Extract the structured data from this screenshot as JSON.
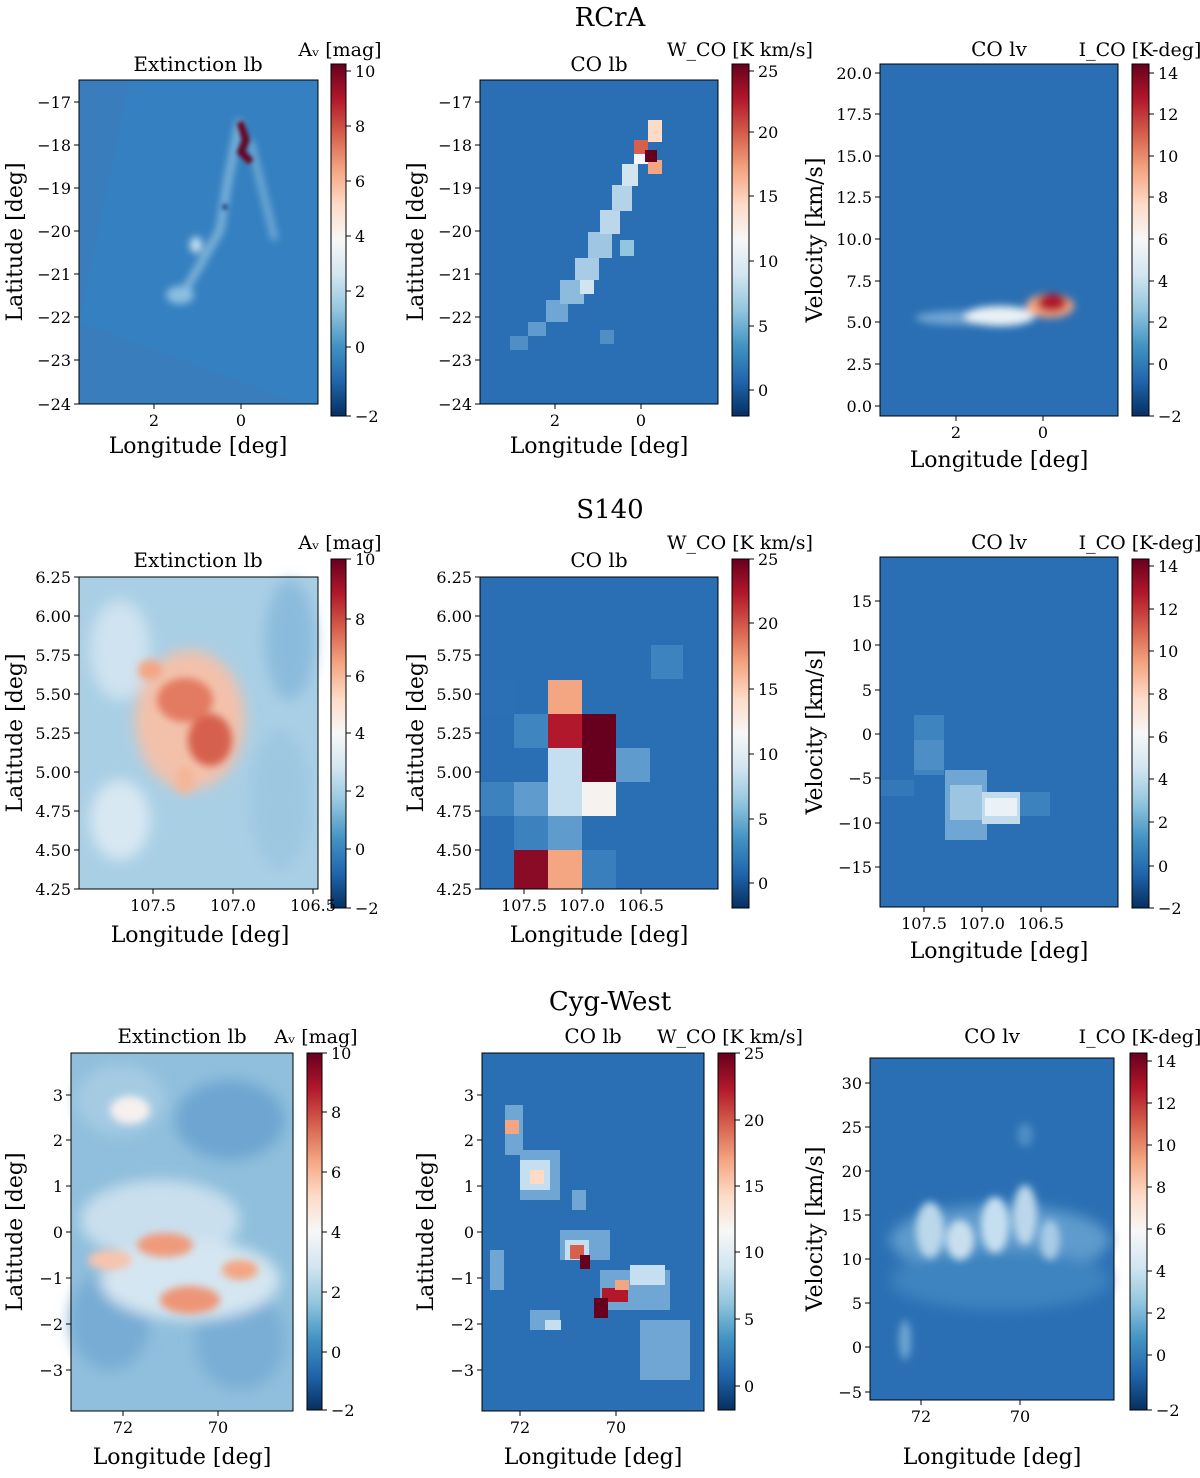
{
  "colors": {
    "cmap": [
      "#053061",
      "#2166ac",
      "#4393c3",
      "#92c5de",
      "#d1e5f0",
      "#f7f7f7",
      "#fddbc7",
      "#f4a582",
      "#d6604d",
      "#b2182b",
      "#67001f"
    ],
    "frame": "#000000"
  },
  "rows": [
    {
      "title": "RCrA",
      "panels": [
        {
          "title": "Extinction lb",
          "cbar_label": "Aᵥ [mag]",
          "xlabel": "Longitude [deg]",
          "ylabel": "Latitude [deg]",
          "xticks": [
            "2",
            "0"
          ],
          "yticks": [
            "−17",
            "−18",
            "−19",
            "−20",
            "−21",
            "−22",
            "−23",
            "−24"
          ],
          "cbar_ticks": [
            "10",
            "8",
            "6",
            "4",
            "2",
            "0",
            "−2"
          ]
        },
        {
          "title": "CO lb",
          "cbar_label": "W_CO [K km/s]",
          "xlabel": "Longitude [deg]",
          "ylabel": "Latitude [deg]",
          "xticks": [
            "2",
            "0"
          ],
          "yticks": [
            "−17",
            "−18",
            "−19",
            "−20",
            "−21",
            "−22",
            "−23",
            "−24"
          ],
          "cbar_ticks": [
            "25",
            "20",
            "15",
            "10",
            "5",
            "0"
          ]
        },
        {
          "title": "CO lv",
          "cbar_label": "I_CO [K-deg]",
          "xlabel": "Longitude [deg]",
          "ylabel": "Velocity [km/s]",
          "xticks": [
            "2",
            "0"
          ],
          "yticks": [
            "20.0",
            "17.5",
            "15.0",
            "12.5",
            "10.0",
            "7.5",
            "5.0",
            "2.5",
            "0.0"
          ],
          "cbar_ticks": [
            "14",
            "12",
            "10",
            "8",
            "6",
            "4",
            "2",
            "0",
            "−2"
          ]
        }
      ]
    },
    {
      "title": "S140",
      "panels": [
        {
          "title": "Extinction lb",
          "cbar_label": "Aᵥ [mag]",
          "xlabel": "Longitude [deg]",
          "ylabel": "Latitude [deg]",
          "xticks": [
            "107.5",
            "107.0",
            "106.5"
          ],
          "yticks": [
            "6.25",
            "6.00",
            "5.75",
            "5.50",
            "5.25",
            "5.00",
            "4.75",
            "4.50",
            "4.25"
          ],
          "cbar_ticks": [
            "10",
            "8",
            "6",
            "4",
            "2",
            "0",
            "−2"
          ]
        },
        {
          "title": "CO lb",
          "cbar_label": "W_CO [K km/s]",
          "xlabel": "Longitude [deg]",
          "ylabel": "Latitude [deg]",
          "xticks": [
            "107.5",
            "107.0",
            "106.5"
          ],
          "yticks": [
            "6.25",
            "6.00",
            "5.75",
            "5.50",
            "5.25",
            "5.00",
            "4.75",
            "4.50",
            "4.25"
          ],
          "cbar_ticks": [
            "25",
            "20",
            "15",
            "10",
            "5",
            "0"
          ]
        },
        {
          "title": "CO lv",
          "cbar_label": "I_CO [K-deg]",
          "xlabel": "Longitude [deg]",
          "ylabel": "Velocity [km/s]",
          "xticks": [
            "107.5",
            "107.0",
            "106.5"
          ],
          "yticks": [
            "15",
            "10",
            "5",
            "0",
            "−5",
            "−10",
            "−15"
          ],
          "cbar_ticks": [
            "14",
            "12",
            "10",
            "8",
            "6",
            "4",
            "2",
            "0",
            "−2"
          ]
        }
      ]
    },
    {
      "title": "Cyg-West",
      "panels": [
        {
          "title": "Extinction lb",
          "cbar_label": "Aᵥ [mag]",
          "xlabel": "Longitude [deg]",
          "ylabel": "Latitude [deg]",
          "xticks": [
            "72",
            "70"
          ],
          "yticks": [
            "3",
            "2",
            "1",
            "0",
            "−1",
            "−2",
            "−3"
          ],
          "cbar_ticks": [
            "10",
            "8",
            "6",
            "4",
            "2",
            "0",
            "−2"
          ]
        },
        {
          "title": "CO lb",
          "cbar_label": "W_CO [K km/s]",
          "xlabel": "Longitude [deg]",
          "ylabel": "Latitude [deg]",
          "xticks": [
            "72",
            "70"
          ],
          "yticks": [
            "3",
            "2",
            "1",
            "0",
            "−1",
            "−2",
            "−3"
          ],
          "cbar_ticks": [
            "25",
            "20",
            "15",
            "10",
            "5",
            "0"
          ]
        },
        {
          "title": "CO lv",
          "cbar_label": "I_CO [K-deg]",
          "xlabel": "Longitude [deg]",
          "ylabel": "Velocity [km/s]",
          "xticks": [
            "72",
            "70"
          ],
          "yticks": [
            "30",
            "25",
            "20",
            "15",
            "10",
            "5",
            "0",
            "−5"
          ],
          "cbar_ticks": [
            "14",
            "12",
            "10",
            "8",
            "6",
            "4",
            "2",
            "0",
            "−2"
          ]
        }
      ]
    }
  ],
  "chart_data": [
    {
      "type": "heatmap",
      "title": "RCrA — Extinction lb",
      "xlabel": "Longitude [deg]",
      "ylabel": "Latitude [deg]",
      "xlim": [
        3.8,
        -1.8
      ],
      "ylim": [
        -24,
        -16.4
      ],
      "colorbar": {
        "label": "Aᵥ [mag]",
        "range": [
          -2,
          10
        ]
      },
      "features": [
        {
          "l": 0.0,
          "b": -18.0,
          "value": 10
        },
        {
          "l": 0.55,
          "b": -19.6,
          "value": 4
        },
        {
          "l": 1.3,
          "b": -20.5,
          "value": 3
        },
        {
          "l": 1.4,
          "b": -21.5,
          "value": 2.5
        }
      ]
    },
    {
      "type": "heatmap",
      "title": "RCrA — CO lb",
      "xlabel": "Longitude [deg]",
      "ylabel": "Latitude [deg]",
      "xlim": [
        3.8,
        -1.8
      ],
      "ylim": [
        -24,
        -16.4
      ],
      "colorbar": {
        "label": "W_CO [K km/s]",
        "range": [
          -2,
          25
        ]
      },
      "features": [
        {
          "l": -0.2,
          "b": -18.2,
          "value": 25
        },
        {
          "l": -0.4,
          "b": -17.9,
          "value": 14
        },
        {
          "l": 0.5,
          "b": -19.0,
          "value": 8
        },
        {
          "l": 1.2,
          "b": -20.5,
          "value": 6
        },
        {
          "l": 2.2,
          "b": -21.8,
          "value": 4
        }
      ]
    },
    {
      "type": "heatmap",
      "title": "RCrA — CO lv",
      "xlabel": "Longitude [deg]",
      "ylabel": "Velocity [km/s]",
      "xlim": [
        3.8,
        -1.8
      ],
      "ylim": [
        -0.5,
        20.5
      ],
      "colorbar": {
        "label": "I_CO [K-deg]",
        "range": [
          -2,
          15
        ]
      },
      "features": [
        {
          "l": -0.2,
          "v": 5.8,
          "value": 15
        },
        {
          "l": 0.6,
          "v": 5.4,
          "value": 7
        },
        {
          "l": 2.2,
          "v": 5.2,
          "value": 4
        }
      ]
    },
    {
      "type": "heatmap",
      "title": "S140 — Extinction lb",
      "xlabel": "Longitude [deg]",
      "ylabel": "Latitude [deg]",
      "xlim": [
        107.75,
        106.25
      ],
      "ylim": [
        4.25,
        6.25
      ],
      "colorbar": {
        "label": "Aᵥ [mag]",
        "range": [
          -2,
          10
        ]
      },
      "features": [
        {
          "l": 106.95,
          "b": 5.15,
          "value": 8
        },
        {
          "l": 107.1,
          "b": 5.4,
          "value": 7
        },
        {
          "l": 107.3,
          "b": 5.55,
          "value": 6
        },
        {
          "l": 107.05,
          "b": 4.9,
          "value": 6
        }
      ]
    },
    {
      "type": "heatmap",
      "title": "S140 — CO lb",
      "xlabel": "Longitude [deg]",
      "ylabel": "Latitude [deg]",
      "xlim": [
        107.75,
        106.25
      ],
      "ylim": [
        4.25,
        6.25
      ],
      "colorbar": {
        "label": "W_CO [K km/s]",
        "range": [
          -2,
          25
        ]
      },
      "features": [
        {
          "l": 107.0,
          "b": 5.1,
          "value": 25
        },
        {
          "l": 107.2,
          "b": 5.25,
          "value": 24
        },
        {
          "l": 107.4,
          "b": 4.35,
          "value": 24
        },
        {
          "l": 107.2,
          "b": 5.5,
          "value": 15
        },
        {
          "l": 107.2,
          "b": 4.35,
          "value": 15
        },
        {
          "l": 107.0,
          "b": 4.8,
          "value": 12
        }
      ]
    },
    {
      "type": "heatmap",
      "title": "S140 — CO lv",
      "xlabel": "Longitude [deg]",
      "ylabel": "Velocity [km/s]",
      "xlim": [
        107.75,
        106.25
      ],
      "ylim": [
        -19,
        19
      ],
      "colorbar": {
        "label": "I_CO [K-deg]",
        "range": [
          -2,
          15
        ]
      },
      "features": [
        {
          "l": 106.95,
          "v": -8.5,
          "value": 6
        },
        {
          "l": 107.2,
          "v": -9.5,
          "value": 4
        },
        {
          "l": 107.45,
          "v": -2.5,
          "value": 3
        }
      ]
    },
    {
      "type": "heatmap",
      "title": "Cyg-West — Extinction lb",
      "xlabel": "Longitude [deg]",
      "ylabel": "Latitude [deg]",
      "xlim": [
        73.0,
        68.3
      ],
      "ylim": [
        -3.9,
        3.9
      ],
      "colorbar": {
        "label": "Aᵥ [mag]",
        "range": [
          -2,
          10
        ]
      },
      "features": [
        {
          "l": 71.0,
          "b": -0.3,
          "value": 7
        },
        {
          "l": 70.5,
          "b": -1.7,
          "value": 7
        },
        {
          "l": 69.3,
          "b": -1.0,
          "value": 6
        },
        {
          "l": 71.8,
          "b": 2.0,
          "value": 5
        }
      ]
    },
    {
      "type": "heatmap",
      "title": "Cyg-West — CO lb",
      "xlabel": "Longitude [deg]",
      "ylabel": "Latitude [deg]",
      "xlim": [
        73.0,
        68.3
      ],
      "ylim": [
        -3.9,
        3.9
      ],
      "colorbar": {
        "label": "W_CO [K km/s]",
        "range": [
          -2,
          25
        ]
      },
      "features": [
        {
          "l": 70.1,
          "b": -1.6,
          "value": 25
        },
        {
          "l": 70.6,
          "b": -0.6,
          "value": 22
        },
        {
          "l": 72.3,
          "b": 2.2,
          "value": 14
        },
        {
          "l": 71.5,
          "b": 1.0,
          "value": 12
        },
        {
          "l": 69.6,
          "b": -1.0,
          "value": 10
        }
      ]
    },
    {
      "type": "heatmap",
      "title": "Cyg-West — CO lv",
      "xlabel": "Longitude [deg]",
      "ylabel": "Velocity [km/s]",
      "xlim": [
        73.0,
        68.3
      ],
      "ylim": [
        -7.5,
        31
      ],
      "colorbar": {
        "label": "I_CO [K-deg]",
        "range": [
          -2,
          15
        ]
      },
      "features": [
        {
          "l": 69.5,
          "v": 11.0,
          "value": 5
        },
        {
          "l": 70.5,
          "v": 10.0,
          "value": 5
        },
        {
          "l": 71.5,
          "v": 11.0,
          "value": 5
        },
        {
          "l": 72.3,
          "v": -2.0,
          "value": 3
        }
      ]
    }
  ]
}
